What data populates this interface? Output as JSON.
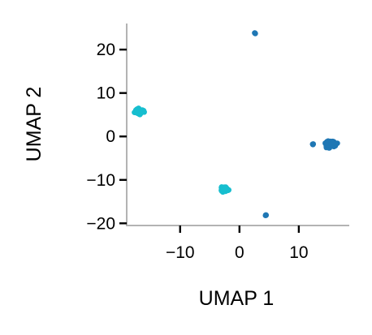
{
  "chart_data": {
    "type": "scatter",
    "title": "",
    "xlabel": "UMAP 1",
    "ylabel": "UMAP 2",
    "xlim": [
      -19,
      18.5
    ],
    "ylim": [
      -20.5,
      26
    ],
    "xticks": [
      -10,
      0,
      10
    ],
    "yticks": [
      20,
      10,
      0,
      -10,
      -20
    ],
    "xtick_labels": [
      "−10",
      "0",
      "10"
    ],
    "ytick_labels": [
      "20",
      "10",
      "0",
      "−10",
      "−20"
    ],
    "grid": false,
    "legend": "none",
    "series": [
      {
        "color": "#17becf",
        "clusters": [
          {
            "x": -16.9,
            "y": 5.8,
            "spread_x": 0.6,
            "spread_y": 0.6,
            "count": 90
          },
          {
            "x": -2.5,
            "y": -12.1,
            "spread_x": 0.5,
            "spread_y": 0.5,
            "count": 60
          }
        ]
      },
      {
        "color": "#1f77b4",
        "clusters": [
          {
            "x": 15.4,
            "y": -1.7,
            "spread_x": 0.8,
            "spread_y": 0.6,
            "count": 140
          },
          {
            "x": 12.4,
            "y": -1.8,
            "spread_x": 0.15,
            "spread_y": 0.15,
            "count": 4
          },
          {
            "x": 2.6,
            "y": 23.8,
            "spread_x": 0.12,
            "spread_y": 0.12,
            "count": 3
          },
          {
            "x": 4.4,
            "y": -18.1,
            "spread_x": 0.12,
            "spread_y": 0.12,
            "count": 3
          }
        ]
      }
    ]
  }
}
